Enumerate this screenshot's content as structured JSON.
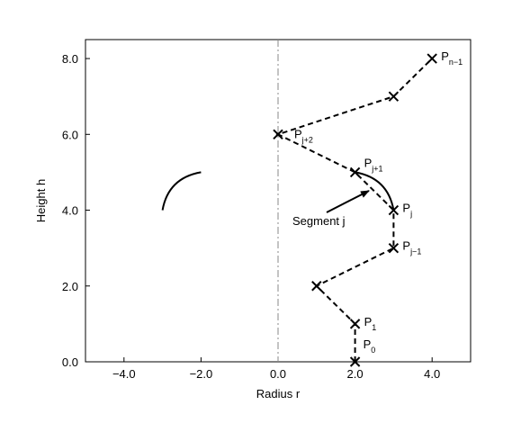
{
  "chart_data": {
    "type": "line",
    "xlabel": "Radius r",
    "ylabel": "Height h",
    "xlim": [
      -5,
      5
    ],
    "ylim": [
      0,
      8.5
    ],
    "xticks": [
      {
        "value": -4,
        "label": "−4.0"
      },
      {
        "value": -2,
        "label": "−2.0"
      },
      {
        "value": 0,
        "label": "0.0"
      },
      {
        "value": 2,
        "label": "2.0"
      },
      {
        "value": 4,
        "label": "4.0"
      }
    ],
    "yticks": [
      {
        "value": 0,
        "label": "0.0"
      },
      {
        "value": 2,
        "label": "2.0"
      },
      {
        "value": 4,
        "label": "4.0"
      },
      {
        "value": 6,
        "label": "6.0"
      },
      {
        "value": 8,
        "label": "8.0"
      }
    ],
    "vline": 0,
    "x": [
      2,
      2,
      1,
      3,
      3,
      2,
      0,
      3,
      4
    ],
    "series": [
      {
        "color": "#000000",
        "values": [
          0,
          1,
          2,
          3,
          4,
          5,
          6,
          7,
          8
        ]
      }
    ],
    "point_labels": [
      {
        "text": "P",
        "sub": "0"
      },
      {
        "text": "P",
        "sub": "1"
      },
      null,
      {
        "text": "P",
        "sub": "j−1"
      },
      {
        "text": "P",
        "sub": "j"
      },
      {
        "text": "P",
        "sub": "j+1"
      },
      {
        "text": "P",
        "sub": "j+2"
      },
      null,
      {
        "text": "P",
        "sub": "n−1"
      }
    ],
    "annotation": "Segment j"
  }
}
